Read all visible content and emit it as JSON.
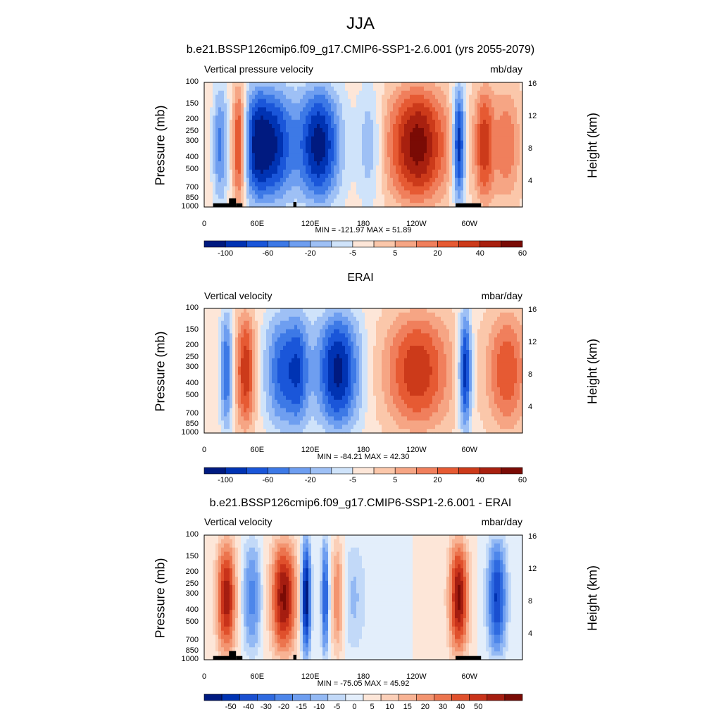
{
  "main_title": "JJA",
  "colors": {
    "frame": "#000000",
    "topo": "#000000"
  },
  "chart_data": [
    {
      "type": "heatmap",
      "title": "b.e21.BSSP126cmip6.f09_g17.CMIP6-SSP1-2.6.001 (yrs 2055-2079)",
      "left_string": "Vertical pressure velocity",
      "right_string": "mb/day",
      "ylabel": "Pressure (mb)",
      "ylabel_right": "Height (km)",
      "pressure_ticks": [
        "100",
        "150",
        "200",
        "250",
        "300",
        "400",
        "500",
        "700",
        "850",
        "1000"
      ],
      "height_ticks": [
        "16",
        "12",
        "8",
        "4"
      ],
      "lon_ticks": [
        "0",
        "60E",
        "120E",
        "180",
        "120W",
        "60W"
      ],
      "min_max": "MIN = -121.97  MAX =  51.89",
      "colorbar_labels": [
        "-100",
        "-60",
        "-20",
        "-5",
        "5",
        "20",
        "40",
        "60"
      ],
      "colorbar_colors": [
        "#001a80",
        "#0033b3",
        "#1a56d9",
        "#3d79e6",
        "#6e9ef0",
        "#9ec0f5",
        "#cfe3fa",
        "#fde6d8",
        "#fbc7aa",
        "#f6a584",
        "#f07f5c",
        "#e65a33",
        "#cc3a1a",
        "#a8200f",
        "#7a0b05"
      ],
      "topography": true
    },
    {
      "type": "heatmap",
      "title": "ERAI",
      "left_string": "Vertical velocity",
      "right_string": "mbar/day",
      "ylabel": "Pressure (mb)",
      "ylabel_right": "Height (km)",
      "pressure_ticks": [
        "100",
        "150",
        "200",
        "250",
        "300",
        "400",
        "500",
        "700",
        "850",
        "1000"
      ],
      "height_ticks": [
        "16",
        "12",
        "8",
        "4"
      ],
      "lon_ticks": [
        "0",
        "60E",
        "120E",
        "180",
        "120W",
        "60W"
      ],
      "min_max": "MIN = -84.21  MAX =  42.30",
      "colorbar_labels": [
        "-100",
        "-60",
        "-20",
        "-5",
        "5",
        "20",
        "40",
        "60"
      ],
      "colorbar_colors": [
        "#001a80",
        "#0033b3",
        "#1a56d9",
        "#3d79e6",
        "#6e9ef0",
        "#9ec0f5",
        "#cfe3fa",
        "#fde6d8",
        "#fbc7aa",
        "#f6a584",
        "#f07f5c",
        "#e65a33",
        "#cc3a1a",
        "#a8200f",
        "#7a0b05"
      ],
      "topography": false
    },
    {
      "type": "heatmap",
      "title": "b.e21.BSSP126cmip6.f09_g17.CMIP6-SSP1-2.6.001 - ERAI",
      "left_string": "Vertical velocity",
      "right_string": "mbar/day",
      "ylabel": "Pressure (mb)",
      "ylabel_right": "Height (km)",
      "pressure_ticks": [
        "100",
        "150",
        "200",
        "250",
        "300",
        "400",
        "500",
        "700",
        "850",
        "1000"
      ],
      "height_ticks": [
        "16",
        "12",
        "8",
        "4"
      ],
      "lon_ticks": [
        "0",
        "60E",
        "120E",
        "180",
        "120W",
        "60W"
      ],
      "min_max": "MIN = -75.05  MAX =  45.92",
      "colorbar_labels": [
        "-50",
        "-40",
        "-30",
        "-20",
        "-15",
        "-10",
        "-5",
        "0",
        "5",
        "10",
        "15",
        "20",
        "30",
        "40",
        "50"
      ],
      "colorbar_colors": [
        "#001a80",
        "#0033b3",
        "#1a4fd0",
        "#2f6ae0",
        "#4d86ea",
        "#6e9ef0",
        "#93b9f4",
        "#c2d9f8",
        "#e3eefb",
        "#fde6d8",
        "#fbcfb8",
        "#f8b394",
        "#f39470",
        "#ec744e",
        "#e0502c",
        "#c9331a",
        "#a51d10",
        "#7a0b05"
      ],
      "topography": true
    }
  ]
}
